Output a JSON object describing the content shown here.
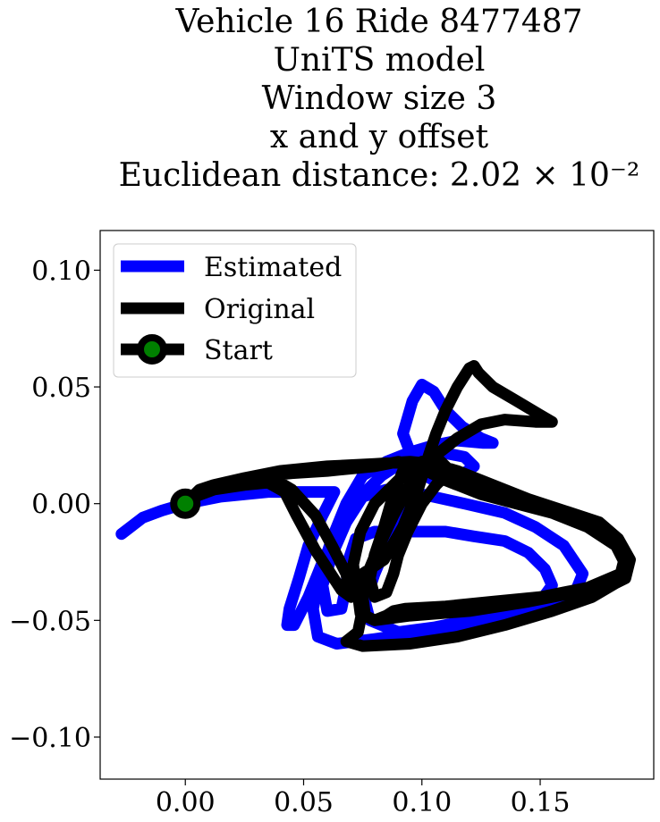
{
  "chart_data": {
    "type": "line",
    "title_lines": [
      "Vehicle 16 Ride 8477487",
      "UniTS model",
      "Window size 3",
      "x and y offset",
      "Euclidean distance: 2.02 × 10⁻²"
    ],
    "xlabel": "",
    "ylabel": "",
    "xlim": [
      -0.036,
      0.198
    ],
    "ylim": [
      -0.118,
      0.117
    ],
    "xticks": [
      0.0,
      0.05,
      0.1,
      0.15
    ],
    "xtick_labels": [
      "0.00",
      "0.05",
      "0.10",
      "0.15"
    ],
    "yticks": [
      0.1,
      0.05,
      0.0,
      -0.05,
      -0.1
    ],
    "ytick_labels": [
      "0.10",
      "0.05",
      "0.00",
      "−0.05",
      "−0.10"
    ],
    "grid": false,
    "legend_position": "upper left",
    "series": [
      {
        "name": "Estimated",
        "color": "#0000ff",
        "points": [
          [
            -0.027,
            -0.013
          ],
          [
            -0.018,
            -0.006
          ],
          [
            -0.01,
            -0.003
          ],
          [
            0.0,
            0.0
          ],
          [
            0.015,
            0.003
          ],
          [
            0.035,
            0.005
          ],
          [
            0.055,
            0.005
          ],
          [
            0.063,
            0.005
          ],
          [
            0.058,
            -0.005
          ],
          [
            0.052,
            -0.018
          ],
          [
            0.048,
            -0.032
          ],
          [
            0.044,
            -0.045
          ],
          [
            0.043,
            -0.052
          ],
          [
            0.046,
            -0.052
          ],
          [
            0.052,
            -0.04
          ],
          [
            0.058,
            -0.025
          ],
          [
            0.065,
            -0.01
          ],
          [
            0.073,
            0.002
          ],
          [
            0.083,
            0.012
          ],
          [
            0.095,
            0.02
          ],
          [
            0.108,
            0.022
          ],
          [
            0.118,
            0.02
          ],
          [
            0.122,
            0.016
          ],
          [
            0.115,
            0.011
          ],
          [
            0.105,
            0.01
          ],
          [
            0.098,
            0.014
          ],
          [
            0.092,
            0.03
          ],
          [
            0.096,
            0.044
          ],
          [
            0.1,
            0.051
          ],
          [
            0.105,
            0.048
          ],
          [
            0.11,
            0.04
          ],
          [
            0.117,
            0.033
          ],
          [
            0.125,
            0.028
          ],
          [
            0.13,
            0.026
          ],
          [
            0.126,
            0.026
          ],
          [
            0.115,
            0.027
          ],
          [
            0.105,
            0.025
          ],
          [
            0.095,
            0.022
          ],
          [
            0.085,
            0.018
          ],
          [
            0.075,
            0.012
          ],
          [
            0.068,
            0.0
          ],
          [
            0.062,
            -0.015
          ],
          [
            0.057,
            -0.03
          ],
          [
            0.054,
            -0.045
          ],
          [
            0.056,
            -0.057
          ],
          [
            0.064,
            -0.06
          ],
          [
            0.08,
            -0.058
          ],
          [
            0.1,
            -0.055
          ],
          [
            0.125,
            -0.05
          ],
          [
            0.15,
            -0.045
          ],
          [
            0.164,
            -0.04
          ],
          [
            0.168,
            -0.03
          ],
          [
            0.16,
            -0.018
          ],
          [
            0.148,
            -0.01
          ],
          [
            0.135,
            -0.004
          ],
          [
            0.118,
            0.0
          ],
          [
            0.1,
            0.004
          ],
          [
            0.085,
            0.006
          ],
          [
            0.075,
            0.003
          ],
          [
            0.068,
            -0.008
          ],
          [
            0.062,
            -0.022
          ],
          [
            0.058,
            -0.035
          ],
          [
            0.06,
            -0.046
          ],
          [
            0.066,
            -0.045
          ],
          [
            0.068,
            -0.035
          ],
          [
            0.069,
            -0.024
          ],
          [
            0.072,
            -0.015
          ],
          [
            0.08,
            -0.012
          ],
          [
            0.095,
            -0.012
          ],
          [
            0.11,
            -0.012
          ],
          [
            0.122,
            -0.014
          ],
          [
            0.135,
            -0.016
          ],
          [
            0.145,
            -0.021
          ],
          [
            0.152,
            -0.028
          ],
          [
            0.155,
            -0.035
          ],
          [
            0.15,
            -0.042
          ],
          [
            0.14,
            -0.046
          ],
          [
            0.125,
            -0.049
          ],
          [
            0.105,
            -0.053
          ],
          [
            0.09,
            -0.055
          ],
          [
            0.078,
            -0.05
          ],
          [
            0.076,
            -0.042
          ],
          [
            0.08,
            -0.03
          ],
          [
            0.085,
            -0.018
          ],
          [
            0.09,
            -0.008
          ],
          [
            0.095,
            0.002
          ]
        ]
      },
      {
        "name": "Original",
        "color": "#000000",
        "points": [
          [
            0.0,
            0.0
          ],
          [
            0.006,
            0.006
          ],
          [
            0.012,
            0.008
          ],
          [
            0.025,
            0.011
          ],
          [
            0.04,
            0.014
          ],
          [
            0.06,
            0.016
          ],
          [
            0.08,
            0.017
          ],
          [
            0.095,
            0.018
          ],
          [
            0.105,
            0.017
          ],
          [
            0.115,
            0.014
          ],
          [
            0.13,
            0.008
          ],
          [
            0.145,
            0.002
          ],
          [
            0.16,
            -0.003
          ],
          [
            0.175,
            -0.008
          ],
          [
            0.183,
            -0.015
          ],
          [
            0.188,
            -0.024
          ],
          [
            0.186,
            -0.032
          ],
          [
            0.178,
            -0.036
          ],
          [
            0.165,
            -0.038
          ],
          [
            0.145,
            -0.042
          ],
          [
            0.12,
            -0.046
          ],
          [
            0.095,
            -0.048
          ],
          [
            0.08,
            -0.05
          ],
          [
            0.074,
            -0.047
          ],
          [
            0.073,
            -0.039
          ],
          [
            0.075,
            -0.03
          ],
          [
            0.078,
            -0.028
          ],
          [
            0.084,
            -0.024
          ],
          [
            0.092,
            -0.01
          ],
          [
            0.098,
            0.005
          ],
          [
            0.102,
            0.018
          ],
          [
            0.106,
            0.03
          ],
          [
            0.11,
            0.04
          ],
          [
            0.115,
            0.05
          ],
          [
            0.12,
            0.058
          ],
          [
            0.122,
            0.059
          ],
          [
            0.124,
            0.056
          ],
          [
            0.13,
            0.05
          ],
          [
            0.14,
            0.044
          ],
          [
            0.15,
            0.038
          ],
          [
            0.155,
            0.035
          ],
          [
            0.148,
            0.035
          ],
          [
            0.135,
            0.036
          ],
          [
            0.125,
            0.034
          ],
          [
            0.115,
            0.028
          ],
          [
            0.105,
            0.02
          ],
          [
            0.095,
            0.008
          ],
          [
            0.088,
            -0.005
          ],
          [
            0.082,
            -0.018
          ],
          [
            0.077,
            -0.03
          ],
          [
            0.075,
            -0.04
          ],
          [
            0.076,
            -0.048
          ],
          [
            0.08,
            -0.05
          ],
          [
            0.085,
            -0.048
          ],
          [
            0.088,
            -0.046
          ],
          [
            0.093,
            -0.045
          ],
          [
            0.11,
            -0.044
          ],
          [
            0.13,
            -0.042
          ],
          [
            0.15,
            -0.04
          ],
          [
            0.17,
            -0.036
          ],
          [
            0.184,
            -0.03
          ],
          [
            0.186,
            -0.022
          ],
          [
            0.18,
            -0.015
          ],
          [
            0.168,
            -0.008
          ],
          [
            0.155,
            -0.004
          ],
          [
            0.14,
            0.0
          ],
          [
            0.125,
            0.005
          ],
          [
            0.112,
            0.012
          ],
          [
            0.1,
            0.018
          ],
          [
            0.092,
            0.014
          ],
          [
            0.088,
            0.004
          ],
          [
            0.084,
            -0.01
          ],
          [
            0.08,
            -0.022
          ],
          [
            0.078,
            -0.032
          ],
          [
            0.08,
            -0.04
          ],
          [
            0.085,
            -0.038
          ],
          [
            0.088,
            -0.03
          ],
          [
            0.09,
            -0.022
          ],
          [
            0.094,
            -0.012
          ],
          [
            0.1,
            0.0
          ],
          [
            0.106,
            0.008
          ],
          [
            0.112,
            0.014
          ],
          [
            0.108,
            0.018
          ],
          [
            0.1,
            0.016
          ],
          [
            0.09,
            0.01
          ],
          [
            0.08,
            0.0
          ],
          [
            0.074,
            -0.012
          ],
          [
            0.071,
            -0.026
          ],
          [
            0.072,
            -0.036
          ],
          [
            0.075,
            -0.045
          ],
          [
            0.073,
            -0.055
          ],
          [
            0.068,
            -0.059
          ],
          [
            0.075,
            -0.061
          ],
          [
            0.095,
            -0.06
          ],
          [
            0.115,
            -0.057
          ],
          [
            0.135,
            -0.052
          ],
          [
            0.155,
            -0.046
          ],
          [
            0.172,
            -0.04
          ],
          [
            0.182,
            -0.034
          ],
          [
            0.186,
            -0.026
          ],
          [
            0.182,
            -0.018
          ],
          [
            0.17,
            -0.01
          ],
          [
            0.155,
            -0.004
          ],
          [
            0.14,
            0.0
          ],
          [
            0.125,
            0.004
          ],
          [
            0.11,
            0.01
          ],
          [
            0.098,
            0.016
          ],
          [
            0.09,
            0.018
          ],
          [
            0.08,
            0.016
          ],
          [
            0.06,
            0.014
          ],
          [
            0.045,
            0.013
          ],
          [
            0.035,
            0.012
          ],
          [
            0.045,
            0.006
          ],
          [
            0.055,
            -0.005
          ],
          [
            0.062,
            -0.018
          ],
          [
            0.068,
            -0.03
          ],
          [
            0.07,
            -0.04
          ],
          [
            0.066,
            -0.037
          ],
          [
            0.055,
            -0.02
          ],
          [
            0.047,
            -0.005
          ],
          [
            0.042,
            0.005
          ],
          [
            0.035,
            0.009
          ],
          [
            0.025,
            0.008
          ],
          [
            0.012,
            0.006
          ],
          [
            0.004,
            0.003
          ]
        ]
      }
    ],
    "legend": [
      {
        "label": "Estimated",
        "color": "#0000ff",
        "marker": false
      },
      {
        "label": "Original",
        "color": "#000000",
        "marker": false
      },
      {
        "label": "Start",
        "color": "#000000",
        "marker": true,
        "marker_color": "#008000"
      }
    ],
    "start_point": {
      "label": "Start",
      "x": 0.0,
      "y": 0.0,
      "marker_fill": "#008000",
      "marker_edge": "#000000"
    }
  }
}
